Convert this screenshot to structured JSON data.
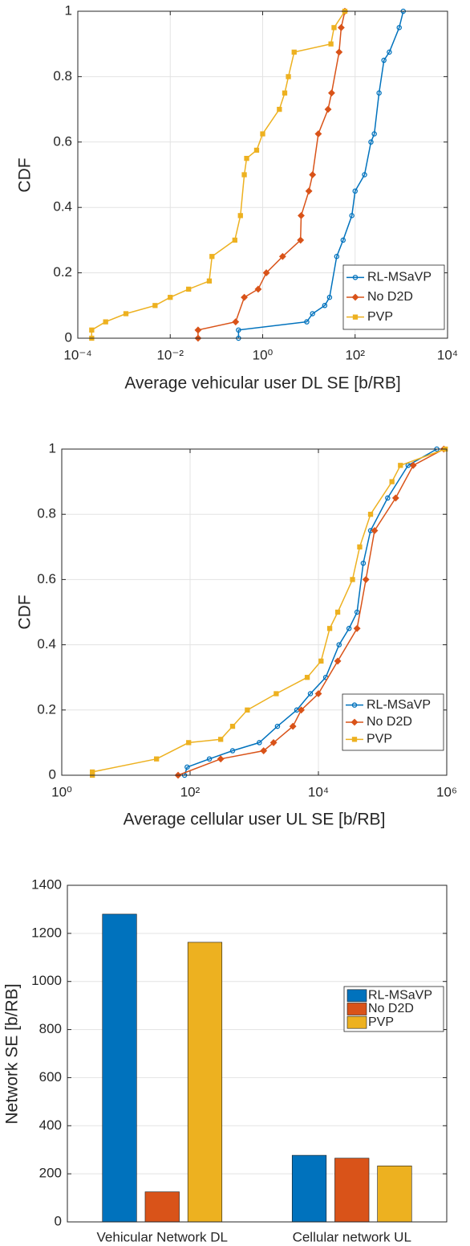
{
  "chart_data": [
    {
      "type": "line",
      "xscale": "log",
      "x_label": "Average vehicular user DL SE [b/RB]",
      "y_label": "CDF",
      "xlim": [
        0.0001,
        10000
      ],
      "xticks": [
        {
          "value": 0.0001,
          "label": "10⁻⁴"
        },
        {
          "value": 0.01,
          "label": "10⁻²"
        },
        {
          "value": 1,
          "label": "10⁰"
        },
        {
          "value": 100,
          "label": "10²"
        },
        {
          "value": 10000,
          "label": "10⁴"
        }
      ],
      "ylim": [
        0,
        1
      ],
      "yticks": [
        0,
        0.2,
        0.4,
        0.6,
        0.8,
        1
      ],
      "grid": true,
      "legend": "lower right",
      "series": [
        {
          "name": "RL-MSaVP",
          "color": "#0072bd",
          "marker": "circle",
          "x": [
            0.3,
            0.3,
            9,
            12,
            22,
            28,
            40,
            55,
            85,
            100,
            160,
            220,
            260,
            330,
            420,
            550,
            900,
            1100
          ],
          "values": [
            0,
            0.025,
            0.05,
            0.075,
            0.1,
            0.125,
            0.25,
            0.3,
            0.375,
            0.45,
            0.5,
            0.6,
            0.625,
            0.75,
            0.85,
            0.875,
            0.95,
            1
          ]
        },
        {
          "name": "No D2D",
          "color": "#d95319",
          "marker": "diamond",
          "x": [
            0.04,
            0.04,
            0.26,
            0.4,
            0.8,
            1.2,
            2.7,
            6.6,
            6.8,
            10,
            12,
            16,
            26,
            31,
            45,
            50,
            60
          ],
          "values": [
            0,
            0.025,
            0.05,
            0.125,
            0.15,
            0.2,
            0.25,
            0.3,
            0.375,
            0.45,
            0.5,
            0.625,
            0.7,
            0.75,
            0.875,
            0.95,
            1
          ]
        },
        {
          "name": "PVP",
          "color": "#edb120",
          "marker": "square",
          "x": [
            0.0002,
            0.0002,
            0.0004,
            0.0011,
            0.0047,
            0.01,
            0.025,
            0.07,
            0.08,
            0.25,
            0.33,
            0.4,
            0.45,
            0.74,
            1,
            2.3,
            3,
            3.6,
            4.8,
            30,
            35,
            60
          ],
          "values": [
            0,
            0.025,
            0.05,
            0.075,
            0.1,
            0.125,
            0.15,
            0.175,
            0.25,
            0.3,
            0.375,
            0.5,
            0.55,
            0.575,
            0.625,
            0.7,
            0.75,
            0.8,
            0.875,
            0.9,
            0.95,
            1
          ]
        }
      ]
    },
    {
      "type": "line",
      "xscale": "log",
      "x_label": "Average cellular user UL SE [b/RB]",
      "y_label": "CDF",
      "xlim": [
        1,
        1000000
      ],
      "xticks": [
        {
          "value": 1,
          "label": "10⁰"
        },
        {
          "value": 100,
          "label": "10²"
        },
        {
          "value": 10000,
          "label": "10⁴"
        },
        {
          "value": 1000000,
          "label": "10⁶"
        }
      ],
      "ylim": [
        0,
        1
      ],
      "yticks": [
        0,
        0.2,
        0.4,
        0.6,
        0.8,
        1
      ],
      "grid": true,
      "legend": "lower right",
      "series": [
        {
          "name": "RL-MSaVP",
          "color": "#0072bd",
          "marker": "circle",
          "x": [
            82,
            90,
            200,
            460,
            1200,
            2300,
            4600,
            7500,
            13000,
            21000,
            30000,
            40000,
            50000,
            65000,
            120000,
            250000,
            700000
          ],
          "values": [
            0,
            0.025,
            0.05,
            0.075,
            0.1,
            0.15,
            0.2,
            0.25,
            0.3,
            0.4,
            0.45,
            0.5,
            0.65,
            0.75,
            0.85,
            0.95,
            1
          ]
        },
        {
          "name": "No D2D",
          "color": "#d95319",
          "marker": "diamond",
          "x": [
            65,
            300,
            1400,
            2000,
            4000,
            5400,
            10000,
            20000,
            40000,
            55000,
            75000,
            160000,
            300000,
            900000
          ],
          "values": [
            0,
            0.05,
            0.075,
            0.1,
            0.15,
            0.2,
            0.25,
            0.35,
            0.45,
            0.6,
            0.75,
            0.85,
            0.95,
            1
          ]
        },
        {
          "name": "PVP",
          "color": "#edb120",
          "marker": "square",
          "x": [
            3,
            3,
            30,
            95,
            300,
            460,
            780,
            2200,
            6700,
            11000,
            15000,
            20000,
            34000,
            44000,
            65000,
            140000,
            190000,
            950000
          ],
          "values": [
            0,
            0.01,
            0.05,
            0.1,
            0.11,
            0.15,
            0.2,
            0.25,
            0.3,
            0.35,
            0.45,
            0.5,
            0.6,
            0.7,
            0.8,
            0.9,
            0.95,
            1
          ]
        }
      ]
    },
    {
      "type": "bar",
      "y_label": "Network SE [b/RB]",
      "categories": [
        "Vehicular Network DL",
        "Cellular network UL"
      ],
      "ylim": [
        0,
        1400
      ],
      "yticks": [
        0,
        200,
        400,
        600,
        800,
        1000,
        1200,
        1400
      ],
      "grid": true,
      "legend": "upper right",
      "series": [
        {
          "name": "RL-MSaVP",
          "color": "#0072bd",
          "values": [
            1280,
            277
          ]
        },
        {
          "name": "No D2D",
          "color": "#d95319",
          "values": [
            125,
            265
          ]
        },
        {
          "name": "PVP",
          "color": "#edb120",
          "values": [
            1163,
            233
          ]
        }
      ]
    }
  ]
}
